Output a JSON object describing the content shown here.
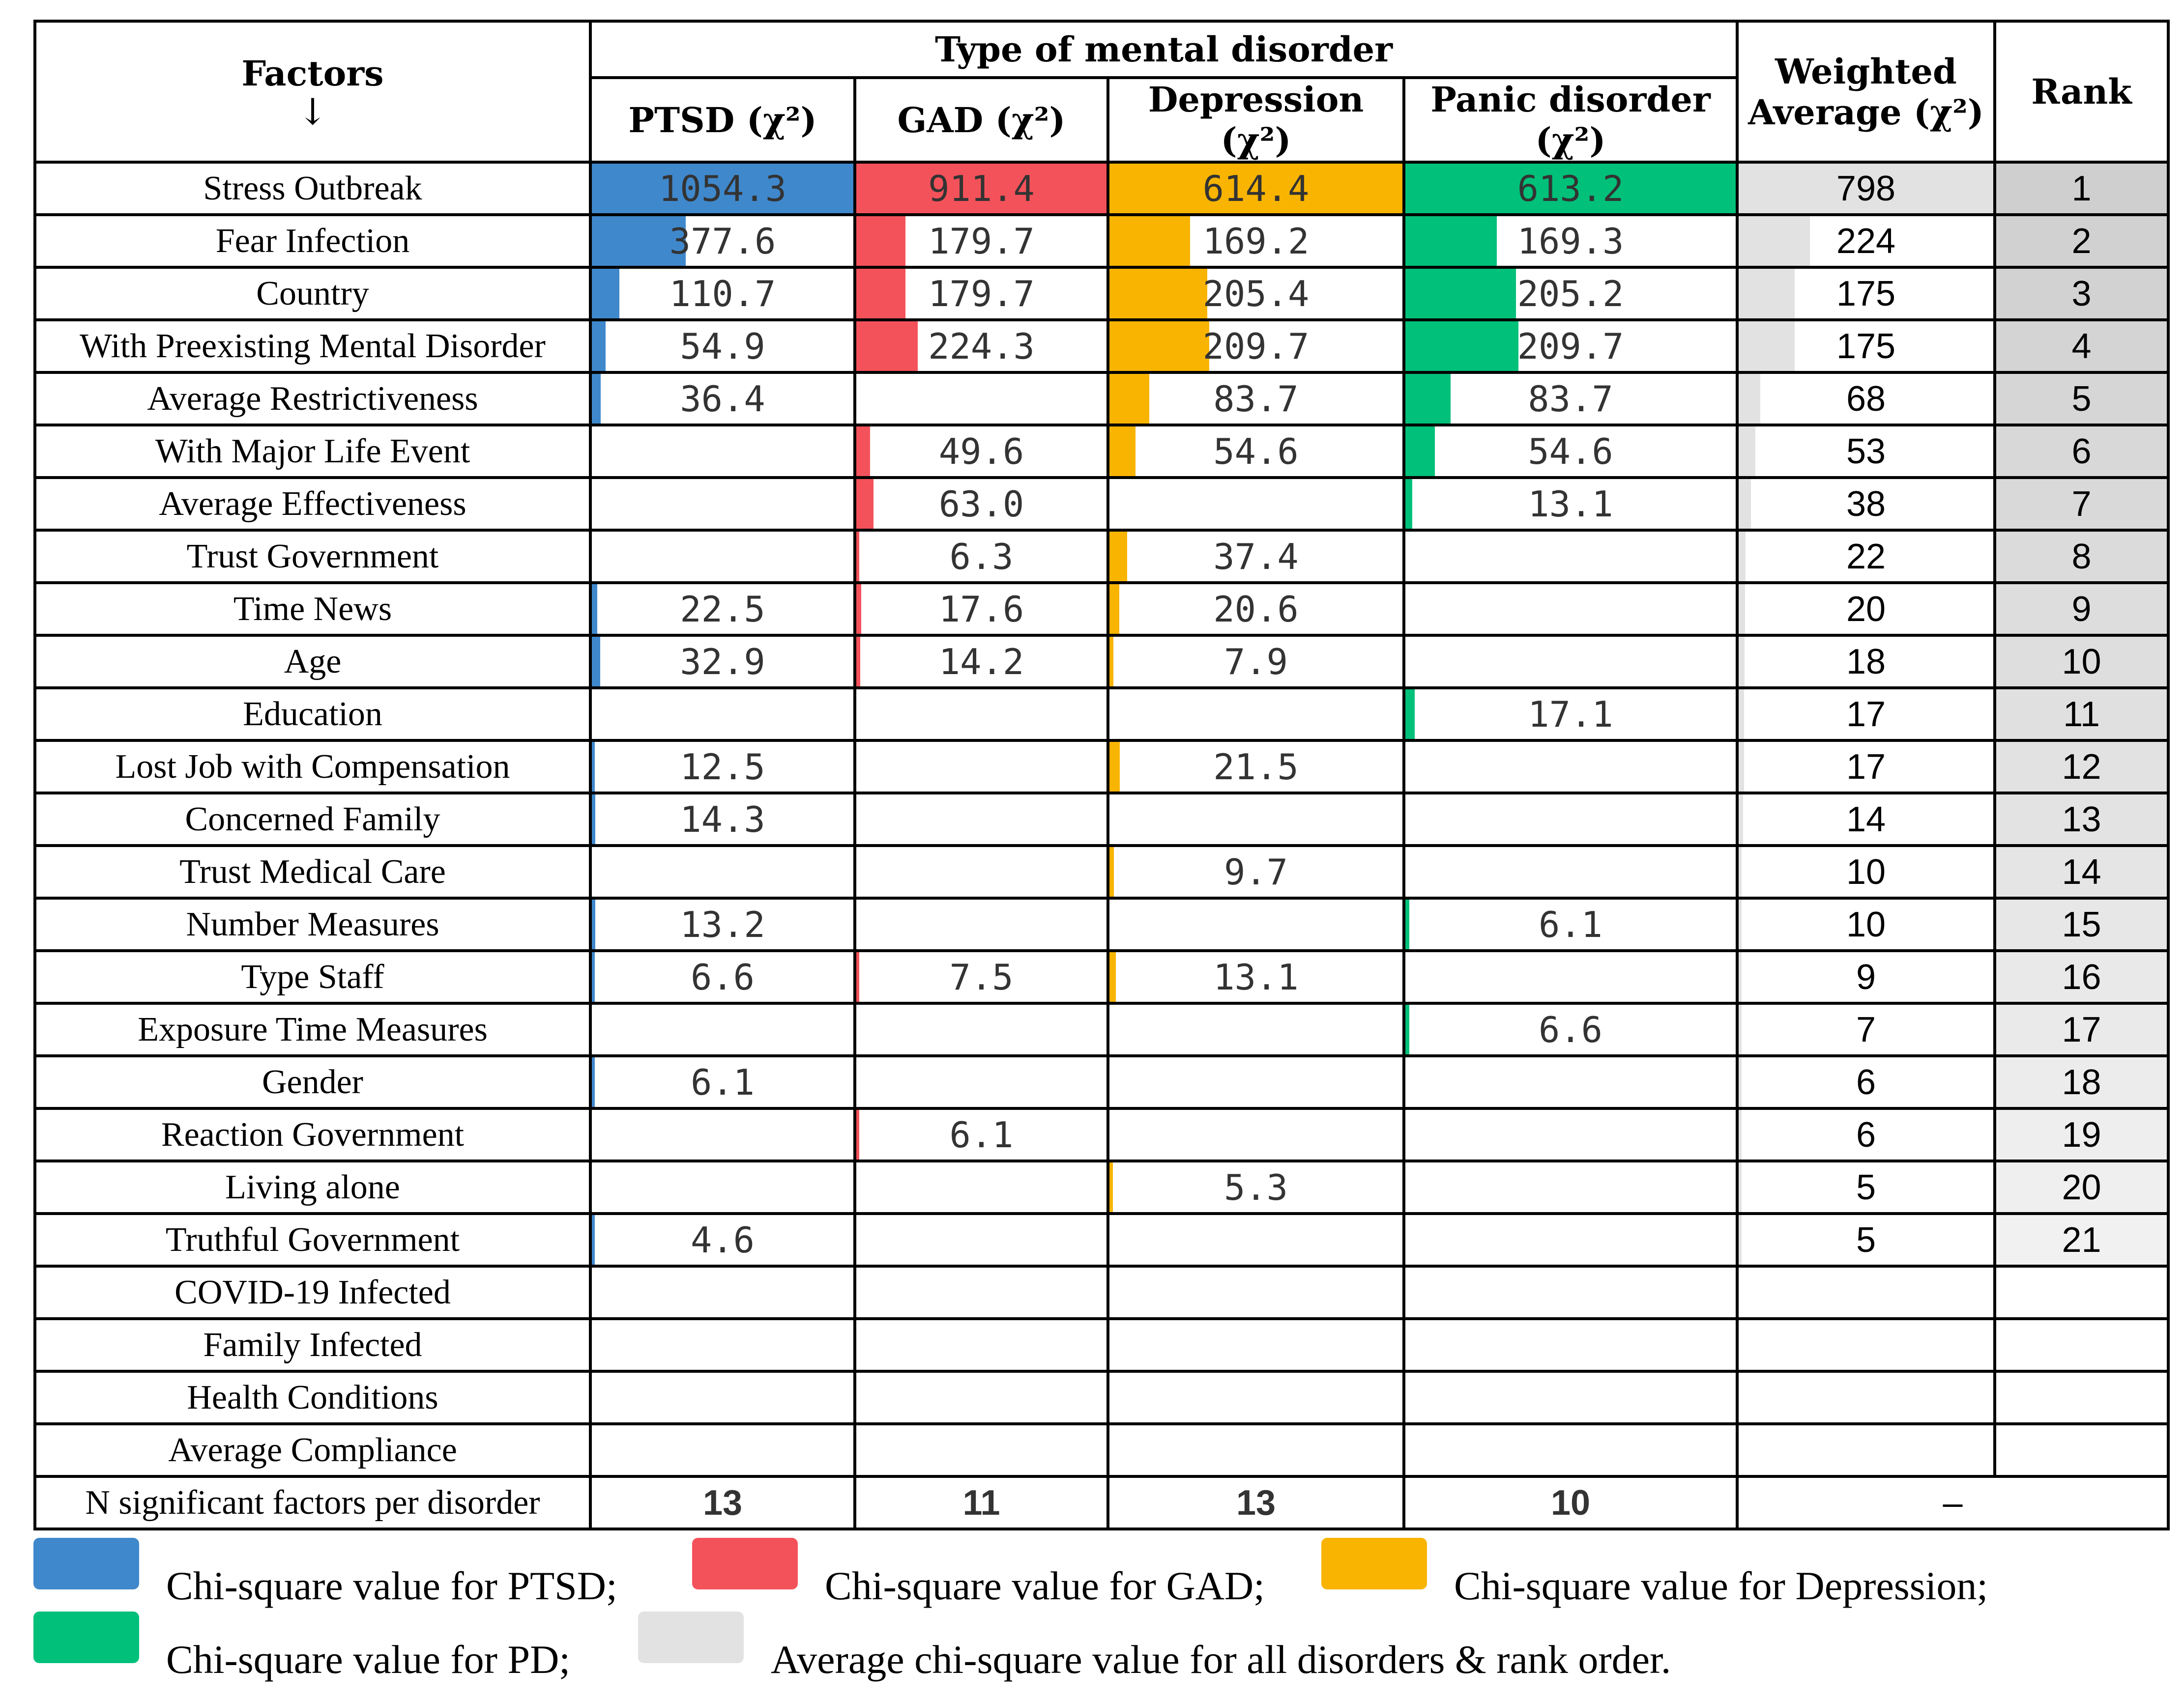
{
  "header": {
    "factors": "Factors",
    "factors_arrow": "↓",
    "type_group": "Type of mental disorder",
    "weighted_line1": "Weighted",
    "weighted_line2": "Average (χ²)",
    "rank": "Rank"
  },
  "colors": {
    "ptsd": "#3f88cc",
    "gad": "#f4525a",
    "depression": "#f8b400",
    "panic": "#00c07a",
    "weighted": "#e2e2e2",
    "rank_max": "#cfcfcf",
    "rank_min": "#f1f1f1"
  },
  "legend": [
    {
      "color_key": "ptsd",
      "text": "Chi-square value for PTSD;"
    },
    {
      "color_key": "gad",
      "text": "Chi-square value for GAD;"
    },
    {
      "color_key": "depression",
      "text": "Chi-square value for Depression;"
    },
    {
      "color_key": "panic",
      "text": "Chi-square value for PD;"
    },
    {
      "color_key": "weighted",
      "text": "Average chi-square value for all disorders & rank order."
    }
  ],
  "chart_data": {
    "type": "table",
    "columns": [
      "PTSD (χ²)",
      "GAD (χ²)",
      "Depression (χ²)",
      "Panic disorder (χ²)",
      "Weighted Average (χ²)",
      "Rank"
    ],
    "column_keys": [
      "ptsd",
      "gad",
      "depression",
      "panic"
    ],
    "rows": [
      {
        "factor": "Stress Outbreak",
        "ptsd": "1054.3",
        "gad": "911.4",
        "depression": "614.4",
        "panic": "613.2",
        "weighted": "798",
        "rank": "1"
      },
      {
        "factor": "Fear Infection",
        "ptsd": "377.6",
        "gad": "179.7",
        "depression": "169.2",
        "panic": "169.3",
        "weighted": "224",
        "rank": "2"
      },
      {
        "factor": "Country",
        "ptsd": "110.7",
        "gad": "179.7",
        "depression": "205.4",
        "panic": "205.2",
        "weighted": "175",
        "rank": "3"
      },
      {
        "factor": "With Preexisting Mental Disorder",
        "ptsd": "54.9",
        "gad": "224.3",
        "depression": "209.7",
        "panic": "209.7",
        "weighted": "175",
        "rank": "4"
      },
      {
        "factor": "Average Restrictiveness",
        "ptsd": "36.4",
        "gad": "",
        "depression": "83.7",
        "panic": "83.7",
        "weighted": "68",
        "rank": "5"
      },
      {
        "factor": "With Major Life Event",
        "ptsd": "",
        "gad": "49.6",
        "depression": "54.6",
        "panic": "54.6",
        "weighted": "53",
        "rank": "6"
      },
      {
        "factor": "Average Effectiveness",
        "ptsd": "",
        "gad": "63.0",
        "depression": "",
        "panic": "13.1",
        "weighted": "38",
        "rank": "7"
      },
      {
        "factor": "Trust Government",
        "ptsd": "",
        "gad": "6.3",
        "depression": "37.4",
        "panic": "",
        "weighted": "22",
        "rank": "8"
      },
      {
        "factor": "Time News",
        "ptsd": "22.5",
        "gad": "17.6",
        "depression": "20.6",
        "panic": "",
        "weighted": "20",
        "rank": "9"
      },
      {
        "factor": "Age",
        "ptsd": "32.9",
        "gad": "14.2",
        "depression": "7.9",
        "panic": "",
        "weighted": "18",
        "rank": "10"
      },
      {
        "factor": "Education",
        "ptsd": "",
        "gad": "",
        "depression": "",
        "panic": "17.1",
        "weighted": "17",
        "rank": "11"
      },
      {
        "factor": "Lost Job with Compensation",
        "ptsd": "12.5",
        "gad": "",
        "depression": "21.5",
        "panic": "",
        "weighted": "17",
        "rank": "12"
      },
      {
        "factor": "Concerned Family",
        "ptsd": "14.3",
        "gad": "",
        "depression": "",
        "panic": "",
        "weighted": "14",
        "rank": "13"
      },
      {
        "factor": "Trust Medical Care",
        "ptsd": "",
        "gad": "",
        "depression": "9.7",
        "panic": "",
        "weighted": "10",
        "rank": "14"
      },
      {
        "factor": "Number Measures",
        "ptsd": "13.2",
        "gad": "",
        "depression": "",
        "panic": "6.1",
        "weighted": "10",
        "rank": "15"
      },
      {
        "factor": "Type Staff",
        "ptsd": "6.6",
        "gad": "7.5",
        "depression": "13.1",
        "panic": "",
        "weighted": "9",
        "rank": "16"
      },
      {
        "factor": "Exposure Time Measures",
        "ptsd": "",
        "gad": "",
        "depression": "",
        "panic": "6.6",
        "weighted": "7",
        "rank": "17"
      },
      {
        "factor": "Gender",
        "ptsd": "6.1",
        "gad": "",
        "depression": "",
        "panic": "",
        "weighted": "6",
        "rank": "18"
      },
      {
        "factor": "Reaction Government",
        "ptsd": "",
        "gad": "6.1",
        "depression": "",
        "panic": "",
        "weighted": "6",
        "rank": "19"
      },
      {
        "factor": "Living alone",
        "ptsd": "",
        "gad": "",
        "depression": "5.3",
        "panic": "",
        "weighted": "5",
        "rank": "20"
      },
      {
        "factor": "Truthful Government",
        "ptsd": "4.6",
        "gad": "",
        "depression": "",
        "panic": "",
        "weighted": "5",
        "rank": "21"
      },
      {
        "factor": "COVID-19 Infected",
        "ptsd": "",
        "gad": "",
        "depression": "",
        "panic": "",
        "weighted": "",
        "rank": ""
      },
      {
        "factor": "Family Infected",
        "ptsd": "",
        "gad": "",
        "depression": "",
        "panic": "",
        "weighted": "",
        "rank": ""
      },
      {
        "factor": "Health Conditions",
        "ptsd": "",
        "gad": "",
        "depression": "",
        "panic": "",
        "weighted": "",
        "rank": ""
      },
      {
        "factor": "Average Compliance",
        "ptsd": "",
        "gad": "",
        "depression": "",
        "panic": "",
        "weighted": "",
        "rank": ""
      }
    ],
    "summary_row": {
      "factor": "N significant factors per disorder",
      "ptsd": "13",
      "gad": "11",
      "depression": "13",
      "panic": "10",
      "weighted_rank": "–"
    }
  }
}
